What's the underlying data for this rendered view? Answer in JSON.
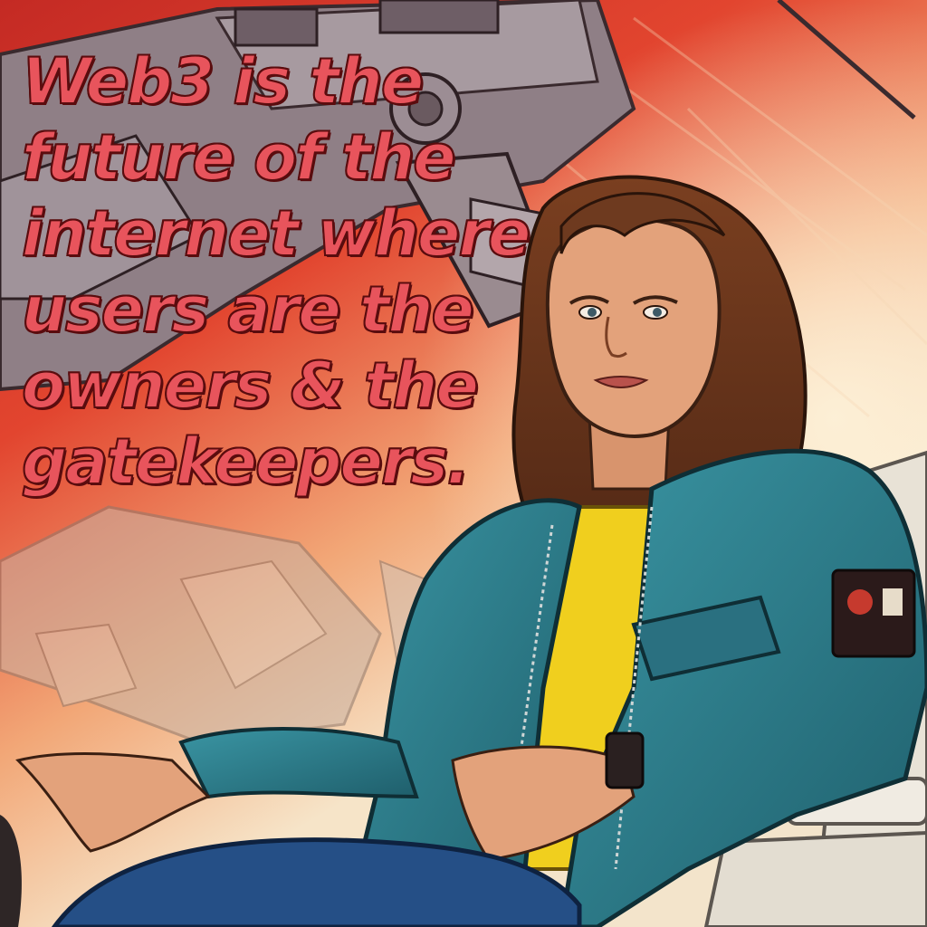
{
  "overlay": {
    "quote_lines": [
      "Web3 is the",
      "future of the",
      "internet where",
      "users are the",
      "owners & the",
      "gatekeepers."
    ],
    "text_color": "#e8545c",
    "outline_color": "#5a0c0e"
  },
  "illustration": {
    "style": "retro comic",
    "palette": {
      "sky_red": "#d8322a",
      "sky_light": "#f6e9cf",
      "jacket_teal": "#2f7f8c",
      "shirt_yellow": "#f0cf1e",
      "hair_brown": "#6e3a1f",
      "skin": "#e3a27b",
      "jeans_blue": "#254f86",
      "machinery_gray": "#8f7f86"
    }
  }
}
